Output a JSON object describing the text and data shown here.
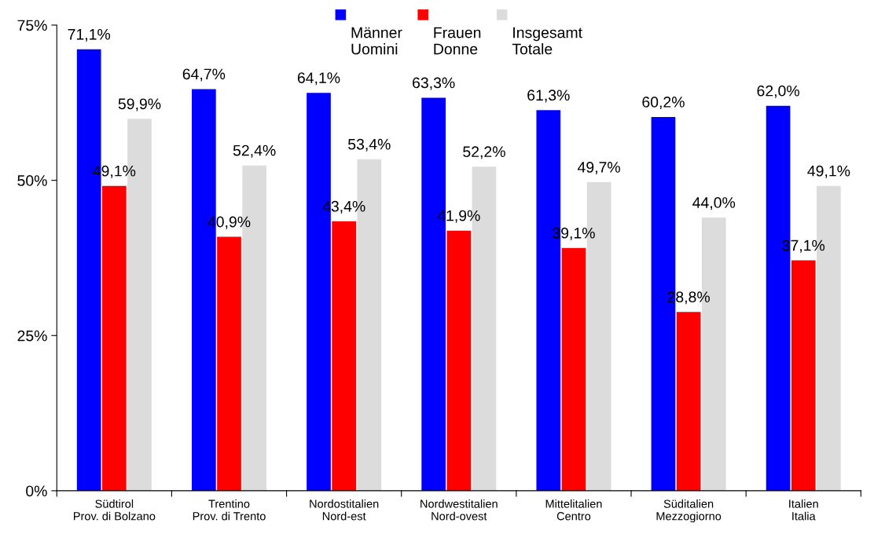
{
  "chart_data": {
    "type": "bar",
    "categories": [
      "Südtirol\nProv. di Bolzano",
      "Trentino\nProv. di Trento",
      "Nordostitalien\nNord-est",
      "Nordwestitalien\nNord-ovest",
      "Mittelitalien\nCentro",
      "Süditalien\nMezzogiorno",
      "Italien\nItalia"
    ],
    "series": [
      {
        "name": "Männer\nUomini",
        "color": "#0000ff",
        "values": [
          71.1,
          64.7,
          64.1,
          63.3,
          61.3,
          60.2,
          62.0
        ],
        "value_labels": [
          "71,1%",
          "64,7%",
          "64,1%",
          "63,3%",
          "61,3%",
          "60,2%",
          "62,0%"
        ]
      },
      {
        "name": "Frauen\nDonne",
        "color": "#ff0000",
        "values": [
          49.1,
          40.9,
          43.4,
          41.9,
          39.1,
          28.8,
          37.1
        ],
        "value_labels": [
          "49,1%",
          "40,9%",
          "43,4%",
          "41,9%",
          "39,1%",
          "28,8%",
          "37,1%"
        ]
      },
      {
        "name": "Insgesamt\nTotale",
        "color": "#dcdcdc",
        "values": [
          59.9,
          52.4,
          53.4,
          52.2,
          49.7,
          44.0,
          49.1
        ],
        "value_labels": [
          "59,9%",
          "52,4%",
          "53,4%",
          "52,2%",
          "49,7%",
          "44,0%",
          "49,1%"
        ]
      }
    ],
    "ylim": [
      0,
      75
    ],
    "yticks": [
      {
        "value": 0,
        "label": "0%"
      },
      {
        "value": 25,
        "label": "25%"
      },
      {
        "value": 50,
        "label": "50%"
      },
      {
        "value": 75,
        "label": "75%"
      }
    ],
    "grid": false,
    "legend": "top"
  }
}
